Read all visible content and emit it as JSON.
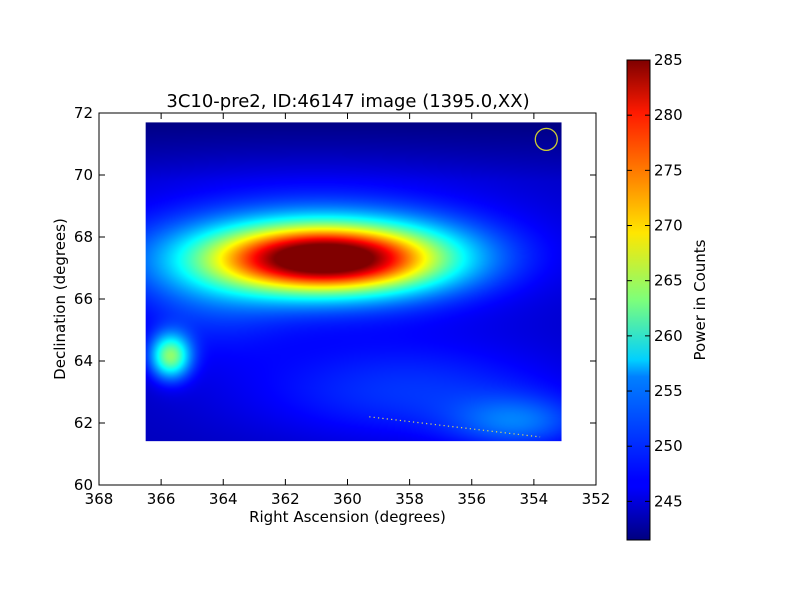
{
  "chart_data": {
    "type": "heatmap",
    "title": "3C10-pre2, ID:46147 image (1395.0,XX)",
    "xlabel": "Right Ascension (degrees)",
    "ylabel": "Declination (degrees)",
    "xlim": [
      368,
      352
    ],
    "ylim": [
      60,
      72
    ],
    "x_ticks": [
      368,
      366,
      364,
      362,
      360,
      358,
      356,
      354,
      352
    ],
    "y_ticks": [
      60,
      62,
      64,
      66,
      68,
      70,
      72
    ],
    "image_extent": {
      "ra": [
        366.5,
        353.1
      ],
      "dec": [
        61.4,
        71.7
      ]
    },
    "background_level": 244,
    "sources": [
      {
        "ra": 360.7,
        "dec": 67.3,
        "peak": 285,
        "sigma_ra": 2.6,
        "sigma_dec": 0.75
      },
      {
        "ra": 361.0,
        "dec": 67.6,
        "peak": 251,
        "sigma_ra": 5.0,
        "sigma_dec": 1.6
      },
      {
        "ra": 365.7,
        "dec": 64.15,
        "peak": 262,
        "sigma_ra": 0.45,
        "sigma_dec": 0.5
      },
      {
        "ra": 358.0,
        "dec": 63.0,
        "peak": 249,
        "sigma_ra": 4.0,
        "sigma_dec": 1.2
      },
      {
        "ra": 354.5,
        "dec": 62.0,
        "peak": 250,
        "sigma_ra": 1.5,
        "sigma_dec": 0.6
      },
      {
        "ra": 364.5,
        "dec": 65.8,
        "peak": 247,
        "sigma_ra": 1.8,
        "sigma_dec": 1.3
      }
    ],
    "beam_marker": {
      "ra": 353.6,
      "dec": 71.15,
      "color": "#cccc33"
    },
    "track": {
      "from": [
        359.3,
        62.2
      ],
      "to": [
        353.8,
        61.55
      ],
      "color": "#d8d860"
    },
    "colorbar": {
      "label": "Power in Counts",
      "min": 241.5,
      "max": 285,
      "ticks": [
        245,
        250,
        255,
        260,
        265,
        270,
        275,
        280,
        285
      ],
      "colormap": "jet"
    }
  }
}
